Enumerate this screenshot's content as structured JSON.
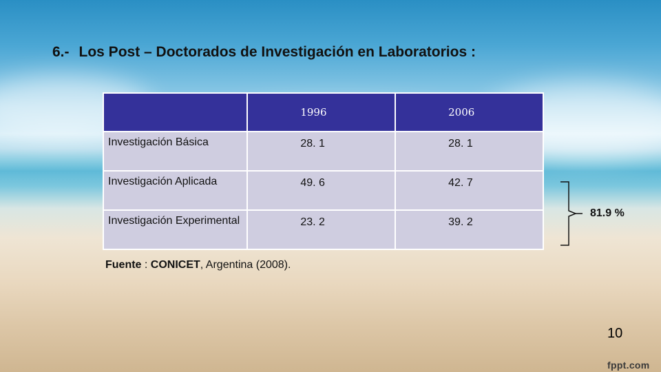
{
  "slide": {
    "title_number": "6.-",
    "title_text": "Los Post – Doctorados de Investigación en Laboratorios :",
    "page_number": "10",
    "logo": "fppt.com"
  },
  "table": {
    "headers": [
      "",
      "1996",
      "2006"
    ],
    "rows": [
      {
        "label": "Investigación  Básica",
        "v1996": "28. 1",
        "v2006": "28. 1"
      },
      {
        "label": "Investigación  Aplicada",
        "v1996": "49. 6",
        "v2006": "42. 7"
      },
      {
        "label": "Investigación  Experimental",
        "v1996": "23. 2",
        "v2006": "39. 2"
      }
    ]
  },
  "annotation": {
    "percent": "81.9 %"
  },
  "source": {
    "prefix": "Fuente",
    "separator": " :  ",
    "org": "CONICET",
    "rest": ", Argentina (2008)."
  }
}
